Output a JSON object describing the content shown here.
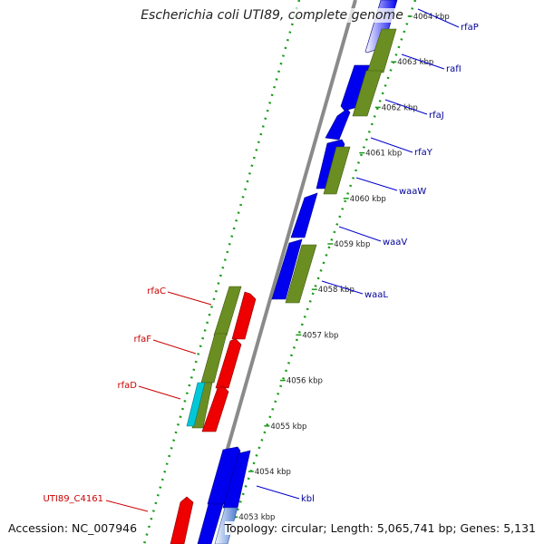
{
  "title": "Escherichia coli UTI89, complete genome",
  "footer": {
    "accession": "Accession: NC_007946",
    "summary": "Topology: circular; Length: 5,065,741 bp; Genes: 5,131"
  },
  "colors": {
    "forward_cds": "#0000ee",
    "reverse_cds": "#ee0000",
    "feature_green": "#6b8e23",
    "feature_cyan": "#00c8d8",
    "forward_label": "#000099",
    "reverse_label": "#cc0000",
    "backbone": "#8a8a8a",
    "dots": "#1a9a1a"
  },
  "scale_marks": [
    "4064 kbp",
    "4063 kbp",
    "4062 kbp",
    "4061 kbp",
    "4060 kbp",
    "4059 kbp",
    "4058 kbp",
    "4057 kbp",
    "4056 kbp",
    "4055 kbp",
    "4054 kbp",
    "4053 kbp"
  ],
  "forward_genes": [
    "rfaP",
    "rafI",
    "rfaJ",
    "rfaY",
    "waaW",
    "waaV",
    "waaL",
    "kbl"
  ],
  "reverse_genes": [
    "rfaC",
    "rfaF",
    "rfaD",
    "UTI89_C4161"
  ]
}
